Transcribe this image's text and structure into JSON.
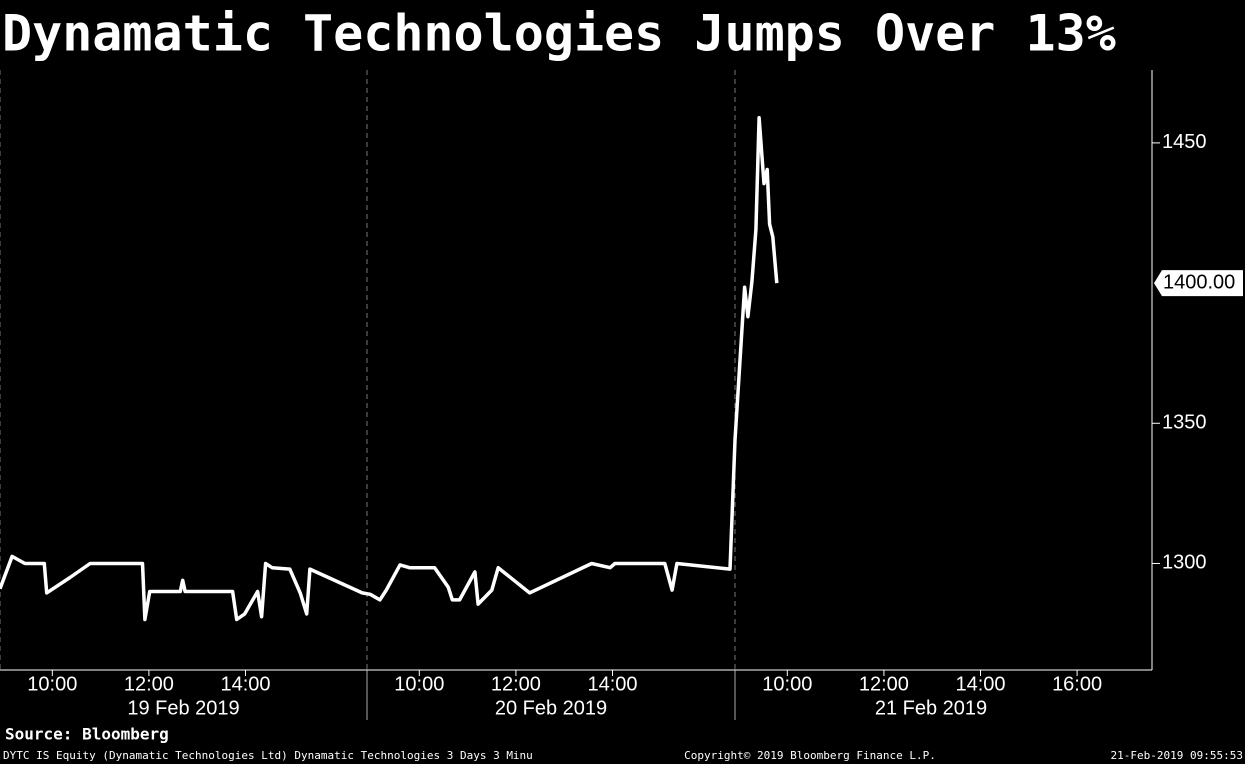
{
  "chart_data": {
    "type": "line",
    "title": "Dynamatic Technologies Jumps Over 13%",
    "days": [
      {
        "value": "2019-02-19",
        "label": "19 Feb 2019"
      },
      {
        "value": "2019-02-20",
        "label": "20 Feb 2019"
      },
      {
        "value": "2019-02-21",
        "label": "21 Feb 2019"
      }
    ],
    "x": [
      "2019-02-19 08:55",
      "2019-02-19 09:10",
      "2019-02-19 09:26",
      "2019-02-19 09:50",
      "2019-02-19 09:53",
      "2019-02-19 10:22",
      "2019-02-19 10:47",
      "2019-02-19 11:52",
      "2019-02-19 11:55",
      "2019-02-19 12:01",
      "2019-02-19 12:39",
      "2019-02-19 12:42",
      "2019-02-19 12:45",
      "2019-02-19 13:44",
      "2019-02-19 13:49",
      "2019-02-19 13:59",
      "2019-02-19 14:15",
      "2019-02-19 14:20",
      "2019-02-19 14:25",
      "2019-02-19 14:33",
      "2019-02-19 14:55",
      "2019-02-19 15:08",
      "2019-02-19 15:16",
      "2019-02-19 15:20",
      "2019-02-19 16:25",
      "2019-02-20 08:59",
      "2019-02-20 09:11",
      "2019-02-20 09:19",
      "2019-02-20 09:36",
      "2019-02-20 09:48",
      "2019-02-20 10:19",
      "2019-02-20 10:36",
      "2019-02-20 10:41",
      "2019-02-20 10:50",
      "2019-02-20 11:09",
      "2019-02-20 11:13",
      "2019-02-20 11:30",
      "2019-02-20 11:38",
      "2019-02-20 12:17",
      "2019-02-20 13:34",
      "2019-02-20 13:57",
      "2019-02-20 14:03",
      "2019-02-20 15:05",
      "2019-02-20 15:14",
      "2019-02-20 15:20",
      "2019-02-20 16:26",
      "2019-02-21 08:55",
      "2019-02-21 09:07",
      "2019-02-21 09:11",
      "2019-02-21 09:16",
      "2019-02-21 09:21",
      "2019-02-21 09:25",
      "2019-02-21 09:31",
      "2019-02-21 09:35",
      "2019-02-21 09:38",
      "2019-02-21 09:42",
      "2019-02-21 09:47"
    ],
    "values": [
      1291,
      1302.5,
      1300,
      1300,
      1289.5,
      1295,
      1300,
      1300,
      1280,
      1290,
      1290,
      1294,
      1290,
      1290,
      1280,
      1282,
      1290,
      1281,
      1300,
      1298.5,
      1298,
      1289.5,
      1282,
      1298,
      1289.5,
      1289,
      1287,
      1290.5,
      1299.5,
      1298.5,
      1298.5,
      1291.5,
      1287,
      1287,
      1297,
      1285.5,
      1290.5,
      1298.5,
      1289.5,
      1300,
      1298.5,
      1300,
      1300,
      1290.5,
      1300,
      1298,
      1344,
      1398.5,
      1388,
      1400.5,
      1419,
      1459,
      1435.5,
      1440.5,
      1421,
      1416.5,
      1400
    ],
    "value_labels": [
      null,
      null,
      null,
      null,
      null,
      null,
      null,
      null,
      null,
      null,
      null,
      null,
      null,
      null,
      null,
      null,
      null,
      null,
      null,
      null,
      null,
      null,
      null,
      null,
      null,
      null,
      null,
      null,
      null,
      null,
      null,
      null,
      null,
      null,
      null,
      null,
      null,
      null,
      null,
      null,
      null,
      null,
      null,
      null,
      null,
      null,
      null,
      null,
      null,
      null,
      null,
      null,
      null,
      null,
      null,
      null,
      "1400.00"
    ],
    "color": "#ffffff",
    "ylim": [
      1262,
      1476
    ],
    "yticks": [
      1300,
      1350,
      1450
    ],
    "xticks": [
      {
        "value": "2019-02-19 10:00",
        "label": "10:00"
      },
      {
        "value": "2019-02-19 12:00",
        "label": "12:00"
      },
      {
        "value": "2019-02-19 14:00",
        "label": "14:00"
      },
      {
        "value": "2019-02-20 10:00",
        "label": "10:00"
      },
      {
        "value": "2019-02-20 12:00",
        "label": "12:00"
      },
      {
        "value": "2019-02-20 14:00",
        "label": "14:00"
      },
      {
        "value": "2019-02-21 10:00",
        "label": "10:00"
      },
      {
        "value": "2019-02-21 12:00",
        "label": "12:00"
      },
      {
        "value": "2019-02-21 14:00",
        "label": "14:00"
      },
      {
        "value": "2019-02-21 16:00",
        "label": "16:00"
      }
    ]
  },
  "source": "Source: Bloomberg",
  "footer": {
    "left": "DYTC IS Equity (Dynamatic Technologies Ltd) Dynamatic Technologies 3 Days 3 Minu",
    "center": "Copyright© 2019 Bloomberg Finance L.P.",
    "right": "21-Feb-2019 09:55:53"
  }
}
